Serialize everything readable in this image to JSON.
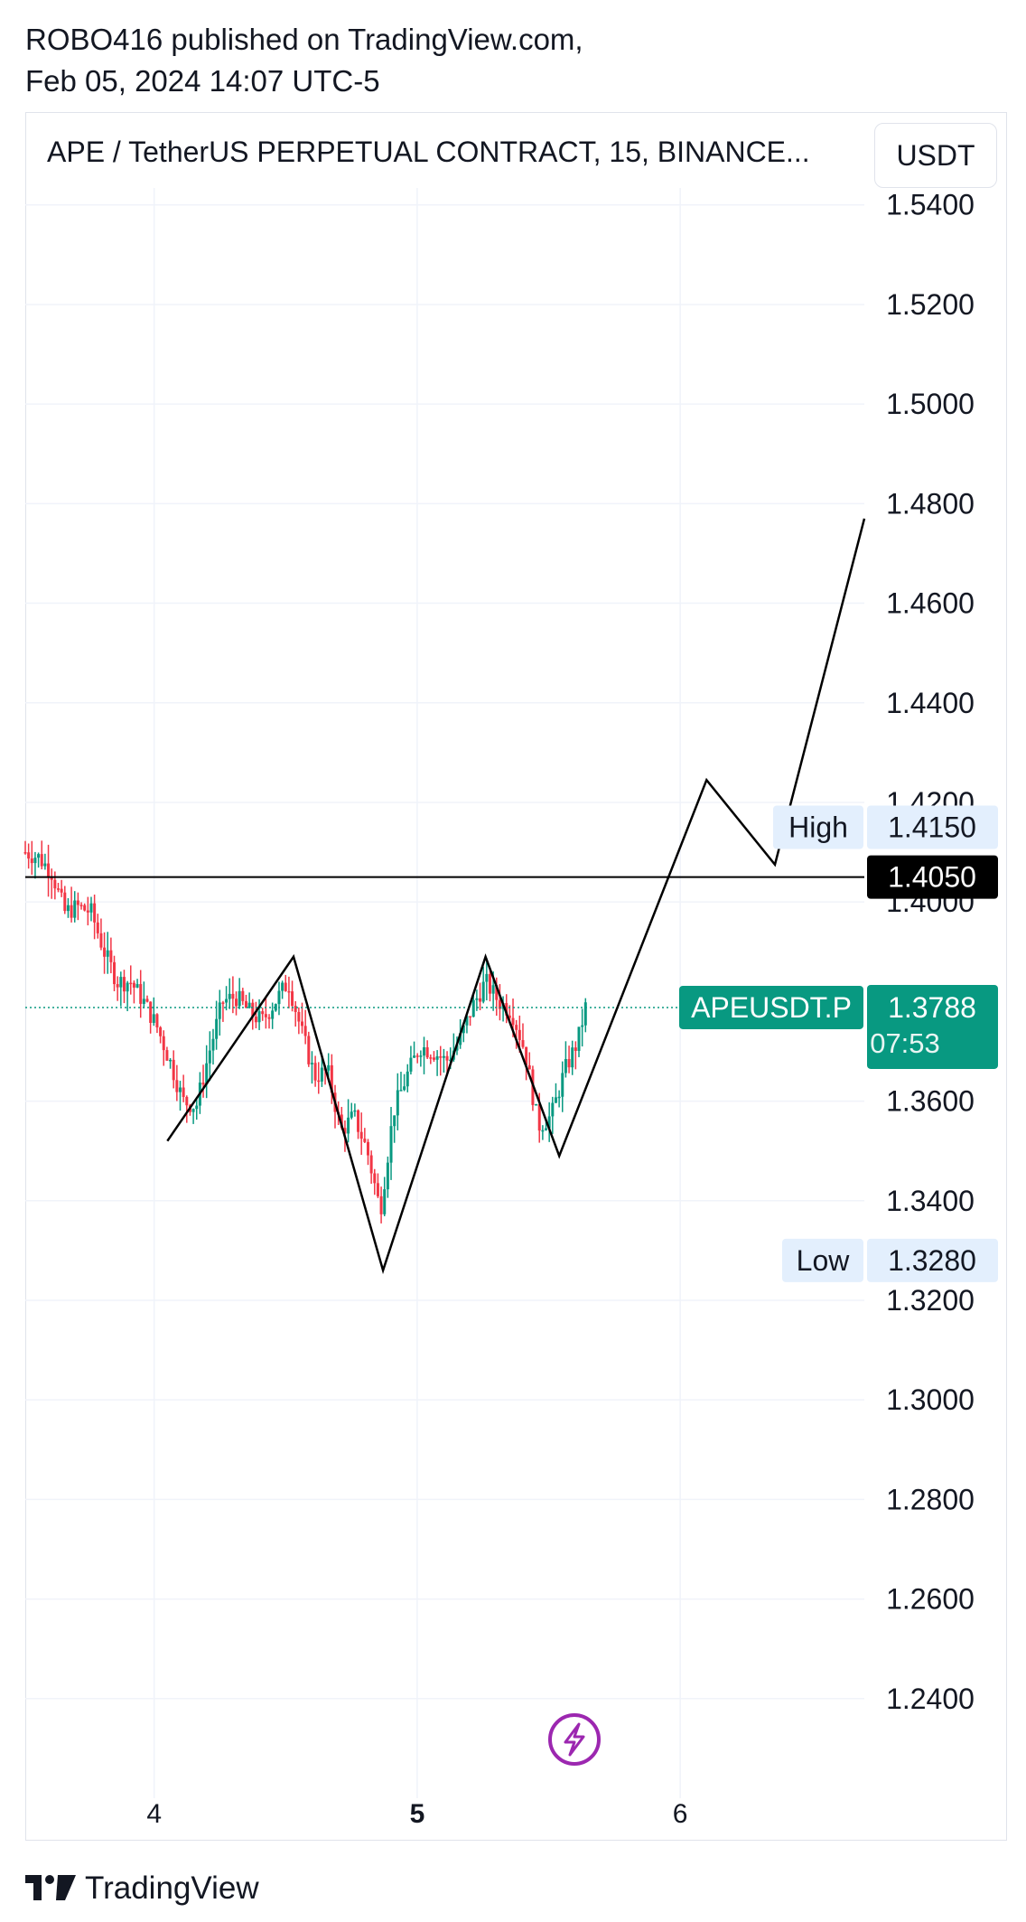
{
  "header": {
    "line1": "ROBO416 published on TradingView.com,",
    "line2": "Feb 05, 2024 14:07 UTC-5"
  },
  "chart_title": "APE / TetherUS PERPETUAL CONTRACT, 15, BINANCE...",
  "unit_button": "USDT",
  "footer": {
    "brand": "TradingView",
    "logo_icon": "tradingview-logo-icon"
  },
  "colors": {
    "up": "#089981",
    "down": "#f23645",
    "label_bg": "#e3effd",
    "price_tag": "#089981",
    "pattern_line": "#000000",
    "flash_icon": "#9c27b0"
  },
  "chart_data": {
    "type": "candlestick",
    "symbol": "APEUSDT.P",
    "ylim": [
      1.22,
      1.5434
    ],
    "y_ticks": [
      "1.2400",
      "1.2600",
      "1.2800",
      "1.3000",
      "1.3200",
      "1.3400",
      "1.3600",
      "1.4000",
      "1.4200",
      "1.4400",
      "1.4600",
      "1.4800",
      "1.5000",
      "1.5200",
      "1.5400"
    ],
    "x_ticks": [
      {
        "label": "4",
        "day": 4,
        "bold": false
      },
      {
        "label": "5",
        "day": 5,
        "bold": true
      },
      {
        "label": "6",
        "day": 6,
        "bold": false
      }
    ],
    "xlim_days": [
      3.51,
      6.7
    ],
    "last_price": {
      "value": 1.3788,
      "label": "1.3788",
      "name": "APEUSDT.P",
      "countdown": "07:53"
    },
    "high": {
      "value": 1.415,
      "label": "1.4150",
      "name": "High"
    },
    "low": {
      "value": 1.328,
      "label": "1.3280",
      "name": "Low"
    },
    "horizontal_line": {
      "value": 1.405,
      "label": "1.4050"
    },
    "pattern_path": [
      [
        4.05,
        1.352
      ],
      [
        4.53,
        1.389
      ],
      [
        4.87,
        1.326
      ],
      [
        5.26,
        1.389
      ],
      [
        5.54,
        1.349
      ],
      [
        6.1,
        1.4245
      ],
      [
        6.36,
        1.4075
      ],
      [
        6.7,
        1.477
      ]
    ],
    "price_series": [
      [
        3.51,
        1.41
      ],
      [
        3.56,
        1.409
      ],
      [
        3.61,
        1.406
      ],
      [
        3.66,
        1.398
      ],
      [
        3.71,
        1.399
      ],
      [
        3.76,
        1.398
      ],
      [
        3.81,
        1.39
      ],
      [
        3.86,
        1.384
      ],
      [
        3.91,
        1.384
      ],
      [
        3.96,
        1.38
      ],
      [
        4.01,
        1.375
      ],
      [
        4.06,
        1.368
      ],
      [
        4.11,
        1.36
      ],
      [
        4.16,
        1.359
      ],
      [
        4.21,
        1.37
      ],
      [
        4.26,
        1.38
      ],
      [
        4.31,
        1.381
      ],
      [
        4.36,
        1.378
      ],
      [
        4.41,
        1.376
      ],
      [
        4.46,
        1.38
      ],
      [
        4.51,
        1.384
      ],
      [
        4.56,
        1.374
      ],
      [
        4.61,
        1.365
      ],
      [
        4.66,
        1.366
      ],
      [
        4.71,
        1.354
      ],
      [
        4.76,
        1.357
      ],
      [
        4.81,
        1.35
      ],
      [
        4.86,
        1.338
      ],
      [
        4.91,
        1.358
      ],
      [
        4.96,
        1.365
      ],
      [
        5.01,
        1.371
      ],
      [
        5.06,
        1.37
      ],
      [
        5.11,
        1.368
      ],
      [
        5.16,
        1.372
      ],
      [
        5.21,
        1.379
      ],
      [
        5.26,
        1.384
      ],
      [
        5.31,
        1.38
      ],
      [
        5.36,
        1.378
      ],
      [
        5.41,
        1.37
      ],
      [
        5.46,
        1.355
      ],
      [
        5.51,
        1.357
      ],
      [
        5.56,
        1.366
      ],
      [
        5.61,
        1.372
      ],
      [
        5.64,
        1.3788
      ]
    ],
    "grid": true
  }
}
